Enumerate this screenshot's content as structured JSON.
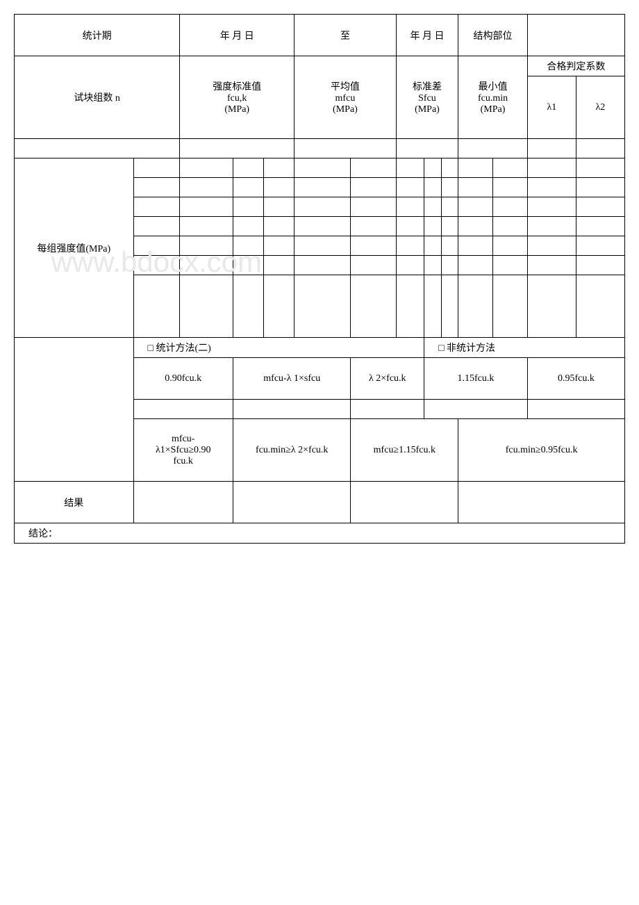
{
  "row1": {
    "label_left": "统计期",
    "date1": "年 月 日",
    "to": "至",
    "date2": "年 月 日",
    "struct_label": "结构部位"
  },
  "row2": {
    "label_left": "试块组数 n",
    "col1_l1": "强度标准值",
    "col1_l2": "fcu,k",
    "col1_l3": "(MPa)",
    "col2_l1": "平均值",
    "col2_l2": "mfcu",
    "col2_l3": "(MPa)",
    "col3_l1": "标准差",
    "col3_l2": "Sfcu",
    "col3_l3": "(MPa)",
    "col4_l1": "最小值",
    "col4_l2": "fcu.min",
    "col4_l3": "(MPa)",
    "col5_top": "合格判定系数",
    "col5_a": "λ1",
    "col5_b": "λ2"
  },
  "grid": {
    "label_left": "每组强度值(MPa)"
  },
  "method": {
    "left": "□ 统计方法(二)",
    "right": "□ 非统计方法"
  },
  "formulas": {
    "a": "0.90fcu.k",
    "b": "mfcu-λ 1×sfcu",
    "c": "λ 2×fcu.k",
    "d": "1.15fcu.k",
    "e": "0.95fcu.k"
  },
  "conditions": {
    "c1_l1": "mfcu-",
    "c1_l2": "λ1×Sfcu≥0.90",
    "c1_l3": "fcu.k",
    "c2": "fcu.min≥λ 2×fcu.k",
    "c3": "mfcu≥1.15fcu.k",
    "c4": "fcu.min≥0.95fcu.k"
  },
  "result": {
    "label": "结果",
    "conclusion": "结论："
  },
  "watermark": "www.bdocx.com"
}
